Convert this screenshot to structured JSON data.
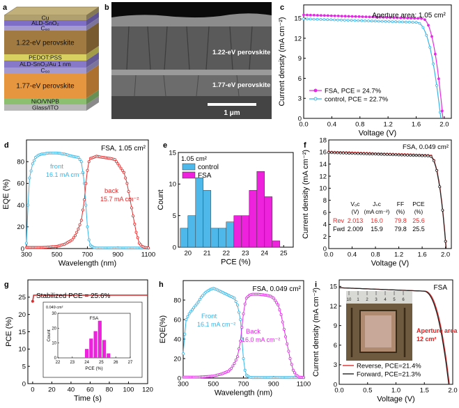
{
  "panels": {
    "a": {
      "letter": "a",
      "layers": [
        {
          "label": "Cu",
          "color": "#b0a070"
        },
        {
          "label": "ALD-SnO₂",
          "color": "#7e6ec6"
        },
        {
          "label": "C₆₀",
          "color": "#a49ad0"
        },
        {
          "label": "1.22-eV perovskite",
          "color": "#a07a40"
        },
        {
          "label": "PEDOT:PSS",
          "color": "#d8d060"
        },
        {
          "label": "ALD-SnO₂/Au 1 nm",
          "color": "#8878c8"
        },
        {
          "label": "C₆₀",
          "color": "#a49ad0"
        },
        {
          "label": "1.77-eV perovskite",
          "color": "#e6963e"
        },
        {
          "label": "NiO/VNPB",
          "color": "#8cc070"
        },
        {
          "label": "Glass/ITO",
          "color": "#b8b8b8"
        }
      ]
    },
    "b": {
      "letter": "b",
      "labels": [
        "1.22-eV perovskite",
        "1.77-eV perovskite"
      ],
      "scalebar": "1 μm"
    }
  },
  "chart_data": [
    {
      "panel": "c",
      "type": "line",
      "xlabel": "Voltage (V)",
      "ylabel": "Current density (mA cm⁻²)",
      "xlim": [
        0,
        2.1
      ],
      "ylim": [
        0,
        17
      ],
      "xticks": [
        "0.0",
        "0.4",
        "0.8",
        "1.2",
        "1.6",
        "2.0"
      ],
      "yticks": [
        "0",
        "3",
        "6",
        "9",
        "12",
        "15"
      ],
      "annotation": "Aperture area: 1.05 cm²",
      "series": [
        {
          "name": "FSA, PCE = 24.7%",
          "color": "#e628e6",
          "jsc": 15.5,
          "voc": 1.98,
          "knee": 1.68
        },
        {
          "name": "control, PCE = 22.7%",
          "color": "#38b4e6",
          "jsc": 14.9,
          "voc": 1.95,
          "knee": 1.6
        }
      ]
    },
    {
      "panel": "d",
      "type": "line",
      "xlabel": "Wavelength (nm)",
      "ylabel": "EQE (%)",
      "xlim": [
        300,
        1100
      ],
      "ylim": [
        0,
        100
      ],
      "xticks": [
        "300",
        "500",
        "700",
        "900",
        "1100"
      ],
      "yticks": [
        "0",
        "20",
        "40",
        "60",
        "80"
      ],
      "annotation": "FSA, 1.05 cm²",
      "series": [
        {
          "name": "front",
          "note": "16.1 mA cm⁻²",
          "color": "#38b4e6",
          "x": [
            300,
            310,
            320,
            340,
            360,
            380,
            400,
            450,
            500,
            550,
            600,
            640,
            660,
            680,
            690,
            700,
            710,
            720,
            740,
            760,
            800,
            900,
            1000,
            1100
          ],
          "y": [
            5,
            40,
            65,
            78,
            84,
            86,
            87,
            88,
            88,
            87,
            85,
            84,
            80,
            60,
            40,
            20,
            8,
            3,
            1,
            0.5,
            0.5,
            0.5,
            0.5,
            0.5
          ]
        },
        {
          "name": "back",
          "note": "15.7 mA cm⁻²",
          "color": "#e02c2c",
          "x": [
            300,
            400,
            500,
            550,
            600,
            620,
            640,
            660,
            680,
            690,
            700,
            710,
            720,
            740,
            760,
            800,
            850,
            880,
            900,
            940,
            960,
            980,
            1000,
            1020,
            1040,
            1060,
            1080,
            1100
          ],
          "y": [
            1,
            1,
            2,
            4,
            8,
            12,
            18,
            26,
            45,
            60,
            72,
            80,
            83,
            84,
            85,
            84,
            83,
            82,
            78,
            70,
            60,
            45,
            30,
            15,
            5,
            2,
            1,
            0.5
          ]
        }
      ]
    },
    {
      "panel": "e",
      "type": "bar",
      "xlabel": "PCE (%)",
      "ylabel": "Count",
      "xlim": [
        19.5,
        25.5
      ],
      "ylim": [
        0,
        15
      ],
      "xticks": [
        "20",
        "21",
        "22",
        "23",
        "24",
        "25"
      ],
      "yticks": [
        "0",
        "5",
        "10",
        "15"
      ],
      "annotation": "1.05 cm²",
      "series": [
        {
          "name": "control",
          "color": "#4fb8ea",
          "x": [
            19.8,
            20.2,
            20.6,
            21.0,
            21.4,
            21.8,
            22.2,
            22.6
          ],
          "values": [
            3,
            5,
            11,
            9,
            3,
            3,
            4,
            1
          ]
        },
        {
          "name": "FSA",
          "color": "#ee22dc",
          "x": [
            22.6,
            23.0,
            23.4,
            23.8,
            24.2,
            24.6
          ],
          "values": [
            5,
            5,
            9,
            12,
            8,
            1
          ]
        }
      ]
    },
    {
      "panel": "f",
      "type": "line",
      "xlabel": "Voltage (V)",
      "ylabel": "Current density (mA cm⁻²)",
      "xlim": [
        0,
        2.1
      ],
      "ylim": [
        0,
        18
      ],
      "xticks": [
        "0.0",
        "0.4",
        "0.8",
        "1.2",
        "1.6",
        "2.0"
      ],
      "yticks": [
        "0",
        "2",
        "4",
        "6",
        "8",
        "10",
        "12",
        "14",
        "16",
        "18"
      ],
      "annotation": "FSA, 0.049 cm²",
      "table": {
        "headers": [
          [
            "Vₒc",
            "(V)"
          ],
          [
            "Jₛc",
            "(mA cm⁻²)"
          ],
          [
            "FF",
            "(%)"
          ],
          [
            "PCE",
            "(%)"
          ]
        ],
        "rows": [
          {
            "label": "Rev",
            "values": [
              "2.013",
              "16.0",
              "79.8",
              "25.6"
            ],
            "color": "#e02c2c"
          },
          {
            "label": "Fwd",
            "values": [
              "2.009",
              "15.9",
              "79.8",
              "25.5"
            ],
            "color": "#000000"
          }
        ]
      },
      "series": [
        {
          "name": "Rev",
          "color": "#e02c2c",
          "jsc": 16.0,
          "voc": 2.013,
          "knee": 1.72
        },
        {
          "name": "Fwd",
          "color": "#222222",
          "jsc": 15.9,
          "voc": 2.009,
          "knee": 1.72
        }
      ]
    },
    {
      "panel": "g",
      "type": "line",
      "xlabel": "Time (s)",
      "ylabel": "PCE (%)",
      "xlim": [
        -5,
        120
      ],
      "ylim": [
        0,
        30
      ],
      "xticks": [
        "0",
        "20",
        "40",
        "60",
        "80",
        "100",
        "120"
      ],
      "yticks": [
        "0",
        "5",
        "10",
        "15",
        "20",
        "25"
      ],
      "annotation": "Stabilized PCE = 25.6%",
      "series": [
        {
          "name": "",
          "color": "#e02c2c",
          "start": 23.8,
          "plateau": 25.6
        }
      ],
      "inset": {
        "type": "bar",
        "annotation": "0.049 cm²",
        "title": "FSA",
        "xlabel": "PCE (%)",
        "ylabel": "Count",
        "xlim": [
          22,
          27
        ],
        "ylim": [
          0,
          30
        ],
        "xticks": [
          "22",
          "23",
          "24",
          "25",
          "26",
          "27"
        ],
        "yticks": [
          "0",
          "10",
          "20",
          "30"
        ],
        "color": "#ee22dc",
        "x": [
          24.0,
          24.3,
          24.6,
          24.9,
          25.2,
          25.5
        ],
        "values": [
          6,
          13,
          18,
          25,
          12,
          3
        ]
      }
    },
    {
      "panel": "h",
      "type": "line",
      "xlabel": "Wavelength (nm)",
      "ylabel": "EQE(%)",
      "xlim": [
        300,
        1100
      ],
      "ylim": [
        0,
        100
      ],
      "xticks": [
        "300",
        "500",
        "700",
        "900",
        "1100"
      ],
      "yticks": [
        "0",
        "20",
        "40",
        "60",
        "80"
      ],
      "annotation": "FSA, 0.049 cm²",
      "series": [
        {
          "name": "Front",
          "note": "16.1 mA cm⁻²",
          "color": "#38b4e6",
          "x": [
            300,
            310,
            320,
            340,
            360,
            380,
            400,
            420,
            450,
            480,
            500,
            520,
            560,
            600,
            640,
            660,
            680,
            690,
            700,
            710,
            720,
            740,
            760,
            800,
            900,
            1000,
            1100
          ],
          "y": [
            25,
            45,
            60,
            66,
            70,
            74,
            78,
            83,
            88,
            91,
            92,
            91,
            88,
            85,
            82,
            75,
            60,
            40,
            20,
            8,
            3,
            1,
            0.5,
            0.5,
            0.5,
            0.5,
            0.5
          ]
        },
        {
          "name": "Back",
          "note": "16.0 mA cm⁻²",
          "color": "#e028e6",
          "x": [
            300,
            400,
            500,
            550,
            600,
            620,
            640,
            660,
            680,
            690,
            700,
            710,
            720,
            740,
            760,
            800,
            850,
            880,
            900,
            930,
            950,
            970,
            990,
            1010,
            1030,
            1050,
            1070,
            1100
          ],
          "y": [
            1,
            1,
            2,
            4,
            7,
            10,
            15,
            22,
            38,
            52,
            66,
            76,
            82,
            85,
            86,
            86,
            85,
            84,
            82,
            75,
            65,
            50,
            35,
            20,
            8,
            3,
            1,
            0.5
          ]
        }
      ]
    },
    {
      "panel": "i",
      "type": "line",
      "xlabel": "Voltage (V)",
      "ylabel": "Current density (mA cm⁻²)",
      "xlim": [
        0,
        2.0
      ],
      "ylim": [
        0,
        16
      ],
      "xticks": [
        "0.0",
        "0.5",
        "1.0",
        "1.5",
        "2.0"
      ],
      "yticks": [
        "0",
        "3",
        "6",
        "9",
        "12",
        "15"
      ],
      "annotation": "FSA",
      "inset_labels": [
        "Aperture area",
        "12 cm²"
      ],
      "ruler_ticks": [
        "10",
        "1",
        "2",
        "3",
        "4",
        "5",
        "6"
      ],
      "series": [
        {
          "name": "Reverse, PCE=21.4%",
          "color": "#e02c2c",
          "jsc": 14.8,
          "voc": 1.94,
          "knee": 1.5
        },
        {
          "name": "Forward, PCE=21.3%",
          "color": "#222222",
          "jsc": 14.8,
          "voc": 1.93,
          "knee": 1.48
        }
      ]
    }
  ]
}
